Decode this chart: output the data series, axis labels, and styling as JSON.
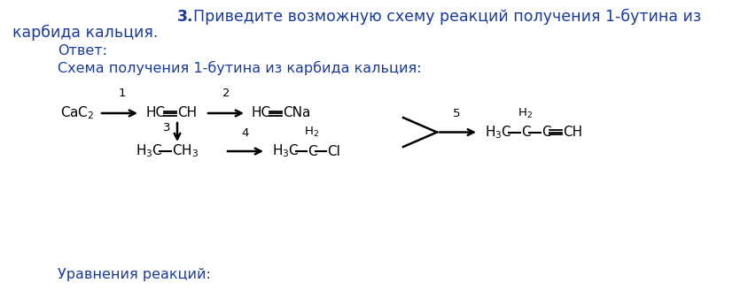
{
  "bg_color": "#ffffff",
  "text_color": "#1a3a9e",
  "chem_color": "#000000",
  "figsize": [
    8.45,
    3.46
  ],
  "dpi": 100,
  "title_line1": "3. Приведите возможную схему реакций получения 1-бутина из",
  "title_line2": "карбида кальция.",
  "answer_label": "Ответ:",
  "scheme_label": "Схема получения 1-бутина из карбида кальция:",
  "footer_label": "Уравнения реакций:"
}
